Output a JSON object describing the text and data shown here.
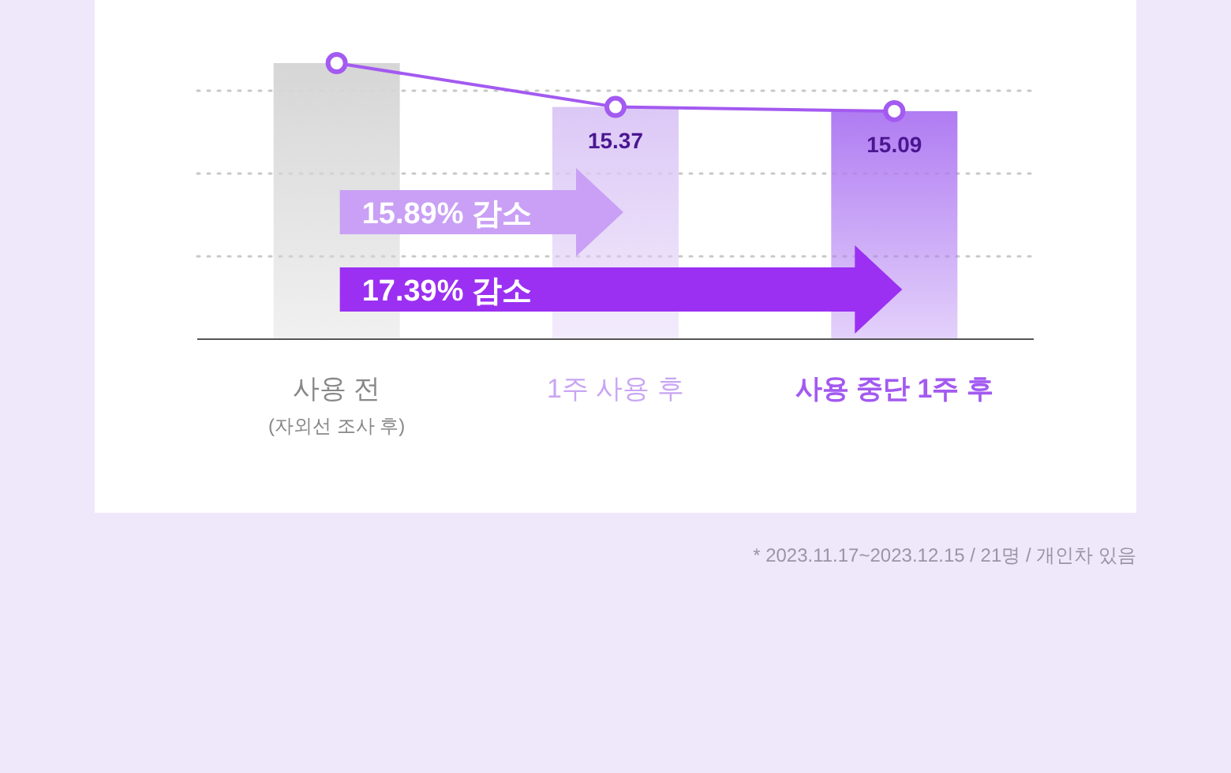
{
  "chart_data": {
    "type": "bar",
    "categories": [
      "사용 전\n(자외선 조사 후)",
      "1주 사용 후",
      "사용 중단 1주 후"
    ],
    "series": [
      {
        "colors": [
          "#d6d6d6",
          "#dcc8f6",
          "#b07cf2"
        ],
        "values": [
          18.27,
          15.37,
          15.09
        ],
        "value_labels": [
          null,
          "15.37",
          "15.09"
        ]
      },
      {
        "type": "line",
        "color": "#a35af0",
        "values": [
          18.27,
          15.37,
          15.09
        ],
        "marker": "circle"
      }
    ],
    "grid": "y",
    "annotations": [
      "15.89% 감소",
      "17.39% 감소",
      "* 2023.11.17~2023.12.15 / 21명 / 개인차 있음"
    ]
  }
}
